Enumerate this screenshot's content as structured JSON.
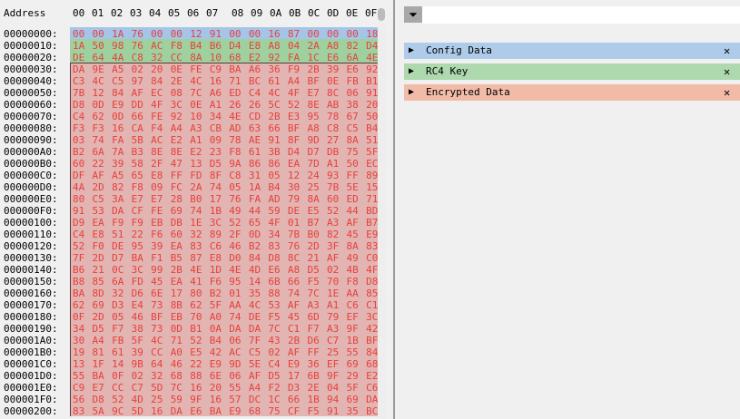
{
  "hex_view": {
    "address_header": "Address",
    "column_headers": [
      "00",
      "01",
      "02",
      "03",
      "04",
      "05",
      "06",
      "07",
      "08",
      "09",
      "0A",
      "0B",
      "0C",
      "0D",
      "0E",
      "0F"
    ],
    "rows": [
      {
        "address": "00000000:",
        "bytes": "00 00 1A 76 00 00 12 91 00 00 16 87 00 00 00 18"
      },
      {
        "address": "00000010:",
        "bytes": "1A 50 98 76 AC F8 B4 B6 D4 E8 A8 04 2A A8 82 D4"
      },
      {
        "address": "00000020:",
        "bytes": "DE 64 4A C8 32 CC 8A 10 68 E2 92 FA 1C E6 6A 4E"
      },
      {
        "address": "00000030:",
        "bytes": "DA 9E A5 02 20 0E FE C9 BA A6 36 F9 2B 39 E6 92"
      },
      {
        "address": "00000040:",
        "bytes": "C3 4C C5 97 84 2E 4C 16 71 BC 61 A4 BF 0E FB B1"
      },
      {
        "address": "00000050:",
        "bytes": "7B 12 84 AF EC 08 7C A6 ED C4 4C 4F E7 8C 06 91"
      },
      {
        "address": "00000060:",
        "bytes": "D8 0D E9 DD 4F 3C 0E A1 26 26 5C 52 8E AB 38 20"
      },
      {
        "address": "00000070:",
        "bytes": "C4 62 0D 66 FE 92 10 34 4E CD 2B E3 95 78 67 50"
      },
      {
        "address": "00000080:",
        "bytes": "F3 F3 16 CA F4 A4 A3 CB AD 63 66 BF A8 C8 C5 B4"
      },
      {
        "address": "00000090:",
        "bytes": "03 74 FA 5B AC E2 A1 09 78 AE 91 8F 9D 27 8A 51"
      },
      {
        "address": "000000A0:",
        "bytes": "B2 6A 7A B3 8E 8E E2 23 F8 61 3B D4 D7 DB 75 5F"
      },
      {
        "address": "000000B0:",
        "bytes": "60 22 39 58 2F 47 13 D5 9A 86 86 EA 7D A1 50 EC"
      },
      {
        "address": "000000C0:",
        "bytes": "DF AF A5 65 E8 FF FD 8F C8 31 05 12 24 93 FF 89"
      },
      {
        "address": "000000D0:",
        "bytes": "4A 2D 82 F8 09 FC 2A 74 05 1A B4 30 25 7B 5E 15"
      },
      {
        "address": "000000E0:",
        "bytes": "80 C5 3A E7 E7 28 B0 17 76 FA AD 79 8A 60 ED 71"
      },
      {
        "address": "000000F0:",
        "bytes": "91 53 DA CF FE 69 74 1B 49 44 59 DE E5 52 44 BD"
      },
      {
        "address": "00000100:",
        "bytes": "D9 EA F9 F9 EB DB 1E 3C 52 65 4F 01 B7 A3 AF B7"
      },
      {
        "address": "00000110:",
        "bytes": "C4 E8 51 22 F6 60 32 89 2F 0D 34 7B B0 82 45 E9"
      },
      {
        "address": "00000120:",
        "bytes": "52 F0 DE 95 39 EA 83 C6 46 B2 83 76 2D 3F 8A 83"
      },
      {
        "address": "00000130:",
        "bytes": "7F 2D D7 BA F1 B5 87 E8 D0 84 D8 8C 21 AF 49 C0"
      },
      {
        "address": "00000140:",
        "bytes": "B6 21 0C 3C 99 2B 4E 1D 4E 4D E6 A8 D5 02 4B 4F"
      },
      {
        "address": "00000150:",
        "bytes": "B8 85 6A FD 45 EA 41 F6 95 14 6B 66 F5 70 F8 D8"
      },
      {
        "address": "00000160:",
        "bytes": "BA 8D 32 D6 6E 17 80 B2 01 35 88 74 7C 1E AA 85"
      },
      {
        "address": "00000170:",
        "bytes": "62 69 D3 E4 73 8B 62 5F AA 4C 53 AF A3 A1 C6 C1"
      },
      {
        "address": "00000180:",
        "bytes": "0F 2D 05 46 BF EB 70 A0 74 DE F5 45 6D 79 EF 3C"
      },
      {
        "address": "00000190:",
        "bytes": "34 D5 F7 38 73 0D B1 0A DA DA 7C C1 F7 A3 9F 42"
      },
      {
        "address": "000001A0:",
        "bytes": "30 A4 FB 5F 4C 71 52 B4 06 7F 43 2B D6 C7 1B BF"
      },
      {
        "address": "000001B0:",
        "bytes": "19 81 61 39 CC A0 E5 42 AC C5 02 AF FF 25 55 84"
      },
      {
        "address": "000001C0:",
        "bytes": "13 1F 14 9B 64 46 22 E9 9D 5E C4 E9 36 EF 69 68"
      },
      {
        "address": "000001D0:",
        "bytes": "55 BA 0F 02 32 68 88 6E 06 AF D5 17 6B 9F 29 E2"
      },
      {
        "address": "000001E0:",
        "bytes": "C9 E7 CC C7 5D 7C 16 20 55 A4 F2 D3 2E 04 5F C6"
      },
      {
        "address": "000001F0:",
        "bytes": "56 D8 52 4D 25 59 9F 16 57 DC 1C 66 1B 94 69 DA"
      },
      {
        "address": "00000200:",
        "bytes": "83 5A 9C 5D 16 DA E6 BA E9 68 75 CF F5 91 35 BC"
      }
    ]
  },
  "filter": {
    "icon": "filter-icon",
    "placeholder": ""
  },
  "highlights": [
    {
      "label": "Config Data",
      "color": "#aecbe9",
      "hex_color": "#a4c4e8",
      "start_row": 0,
      "end_row": 0
    },
    {
      "label": "RC4 Key",
      "color": "#aed8ae",
      "hex_color": "#9fd19f",
      "start_row": 1,
      "end_row": 2
    },
    {
      "label": "Encrypted Data",
      "color": "#f2bba8",
      "hex_color": "#e2b4b2",
      "start_row": 3,
      "end_row": 32
    }
  ],
  "colors": {
    "byte_text": "#e8413c"
  }
}
